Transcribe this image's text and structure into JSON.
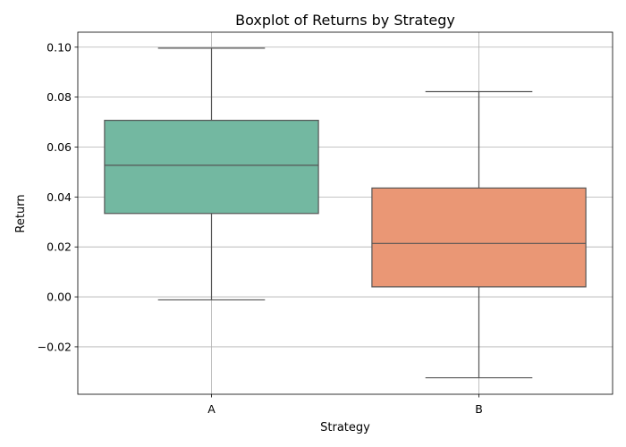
{
  "chart_data": {
    "type": "boxplot",
    "title": "Boxplot of Returns by Strategy",
    "xlabel": "Strategy",
    "ylabel": "Return",
    "ylim": [
      -0.039,
      0.106
    ],
    "yticks": [
      -0.02,
      0.0,
      0.02,
      0.04,
      0.06,
      0.08,
      0.1
    ],
    "ytick_labels": [
      "−0.02",
      "0.00",
      "0.02",
      "0.04",
      "0.06",
      "0.08",
      "0.10"
    ],
    "grid": true,
    "categories": [
      "A",
      "B"
    ],
    "boxes": [
      {
        "category": "A",
        "whisker_low": -0.0012,
        "q1": 0.0334,
        "median": 0.0527,
        "q3": 0.0707,
        "whisker_high": 0.0996,
        "color": "#73b8a1"
      },
      {
        "category": "B",
        "whisker_low": -0.0324,
        "q1": 0.004,
        "median": 0.0214,
        "q3": 0.0436,
        "whisker_high": 0.0822,
        "color": "#ea9775"
      }
    ],
    "edge_color": "#555555"
  }
}
